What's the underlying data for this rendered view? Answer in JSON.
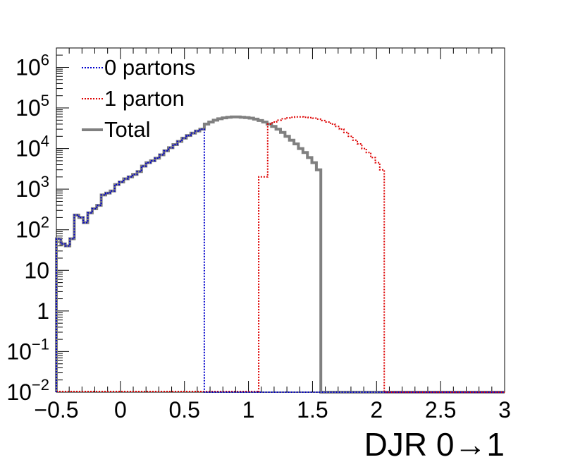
{
  "chart_data": {
    "type": "line",
    "title": "",
    "xlabel": "DJR 0→1",
    "ylabel": "",
    "xlim": [
      -0.5,
      3.0
    ],
    "ylim": [
      0.01,
      3000000
    ],
    "yscale": "log",
    "x_ticks": [
      -0.5,
      0,
      0.5,
      1,
      1.5,
      2,
      2.5,
      3
    ],
    "x_tick_labels": [
      "−0.5",
      "0",
      "0.5",
      "1",
      "1.5",
      "2",
      "2.5",
      "3"
    ],
    "y_ticks": [
      {
        "value": 1000000,
        "base": "10",
        "exp": "6"
      },
      {
        "value": 100000,
        "base": "10",
        "exp": "5"
      },
      {
        "value": 10000,
        "base": "10",
        "exp": "4"
      },
      {
        "value": 1000,
        "base": "10",
        "exp": "3"
      },
      {
        "value": 100,
        "base": "10",
        "exp": "2"
      },
      {
        "value": 10,
        "base": "10",
        "exp": ""
      },
      {
        "value": 1,
        "base": "1",
        "exp": ""
      },
      {
        "value": 0.1,
        "base": "10",
        "exp": "−1"
      },
      {
        "value": 0.01,
        "base": "10",
        "exp": "−2"
      }
    ],
    "legend_position": "top-left",
    "bin_width": 0.035,
    "series": [
      {
        "name": "0 partons",
        "color": "#0000cc",
        "style": "dotted",
        "x_start": -0.5,
        "values": [
          60,
          45,
          40,
          60,
          230,
          200,
          150,
          260,
          330,
          400,
          720,
          800,
          900,
          1300,
          1500,
          1800,
          2000,
          2300,
          2700,
          3700,
          4500,
          5000,
          5800,
          7000,
          8800,
          10500,
          12500,
          15000,
          18000,
          21000,
          24000,
          27000,
          30000
        ]
      },
      {
        "name": "1 parton",
        "color": "#dd0000",
        "style": "dotted",
        "x_start": 1.08,
        "values": [
          2000,
          2000,
          40000,
          45000,
          50000,
          54000,
          57000,
          59000,
          60000,
          60000,
          59000,
          58000,
          56000,
          53000,
          49000,
          45000,
          40000,
          35000,
          30000,
          25000,
          20000,
          16000,
          13000,
          10000,
          8000,
          6000,
          4500,
          3000
        ]
      },
      {
        "name": "Total",
        "color": "#808080",
        "style": "solid",
        "x_start": -0.5,
        "values": [
          60,
          45,
          40,
          60,
          230,
          200,
          150,
          260,
          330,
          400,
          720,
          800,
          900,
          1300,
          1500,
          1800,
          2000,
          2300,
          2700,
          3700,
          4500,
          5000,
          5800,
          7000,
          8800,
          10500,
          12500,
          15000,
          18000,
          21000,
          24000,
          27000,
          30000,
          40000,
          45000,
          50000,
          54000,
          57000,
          59000,
          60000,
          60000,
          59000,
          58000,
          56000,
          53000,
          49000,
          45000,
          40000,
          35000,
          30000,
          25000,
          20000,
          16000,
          13000,
          10000,
          8000,
          6000,
          4500,
          3000
        ]
      }
    ]
  }
}
